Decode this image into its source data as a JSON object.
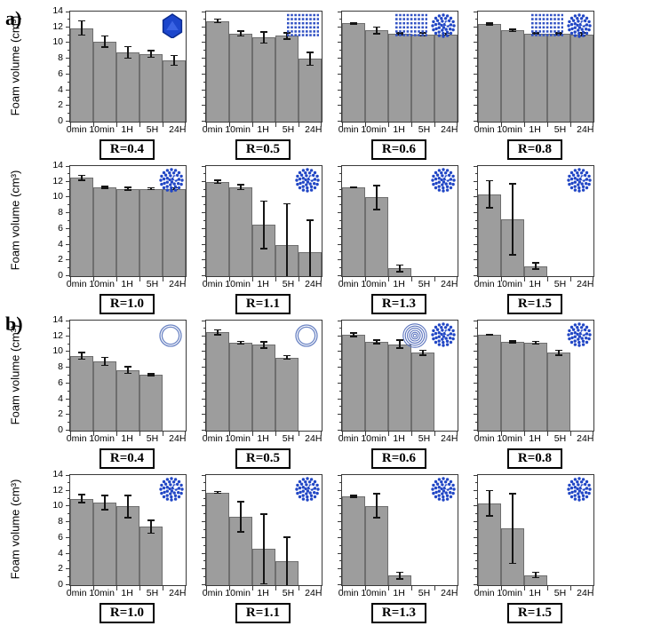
{
  "panels": {
    "a": "a)",
    "b": "b)"
  },
  "axis": {
    "ylabel": "Foam volume (cm³)",
    "yticks": [
      "0",
      "2",
      "4",
      "6",
      "8",
      "10",
      "12",
      "14"
    ],
    "ytick_values": [
      0,
      2,
      4,
      6,
      8,
      10,
      12,
      14
    ],
    "ytick_minor": [
      1,
      3,
      5,
      7,
      9,
      11,
      13
    ],
    "ylim": [
      0,
      14
    ],
    "categories": [
      "0min",
      "10min",
      "1H",
      "5H",
      "24H"
    ]
  },
  "colors": {
    "bar": "#9d9d9d",
    "bar_border": "#6e6e6e",
    "axis": "#3a3a3a",
    "error": "#151515",
    "icon_blue": "#2247c5",
    "icon_blue_dark": "#0b2b8f",
    "icon_blue_light": "#3f68e8",
    "ring_blue": "#6b84c4"
  },
  "chart_data": [
    {
      "type": "bar",
      "panel": "a",
      "label": "R=0.4",
      "categories": [
        "0min",
        "10min",
        "1H",
        "5H",
        "24H"
      ],
      "values": [
        11.9,
        10.2,
        8.8,
        8.6,
        7.8
      ],
      "errors": [
        1.0,
        0.8,
        0.8,
        0.5,
        0.7
      ],
      "icons": [
        "cubic"
      ],
      "ylim": [
        0,
        14
      ]
    },
    {
      "type": "bar",
      "panel": "a",
      "label": "R=0.5",
      "categories": [
        "0min",
        "10min",
        "1H",
        "5H",
        "24H"
      ],
      "values": [
        12.8,
        11.2,
        10.7,
        10.9,
        8.0
      ],
      "errors": [
        0.3,
        0.4,
        0.8,
        0.5,
        0.9
      ],
      "icons": [
        "lamellar"
      ],
      "ylim": [
        0,
        14
      ]
    },
    {
      "type": "bar",
      "panel": "a",
      "label": "R=0.6",
      "categories": [
        "0min",
        "10min",
        "1H",
        "5H",
        "24H"
      ],
      "values": [
        12.5,
        11.6,
        11.2,
        11.1,
        11.1
      ],
      "errors": [
        0.15,
        0.5,
        0.2,
        0.3,
        0.2
      ],
      "icons": [
        "lamellar",
        "micelle"
      ],
      "ylim": [
        0,
        14
      ]
    },
    {
      "type": "bar",
      "panel": "a",
      "label": "R=0.8",
      "categories": [
        "0min",
        "10min",
        "1H",
        "5H",
        "24H"
      ],
      "values": [
        12.4,
        11.6,
        11.2,
        11.2,
        11.1
      ],
      "errors": [
        0.2,
        0.25,
        0.15,
        0.2,
        0.3
      ],
      "icons": [
        "lamellar",
        "micelle"
      ],
      "ylim": [
        0,
        14
      ]
    },
    {
      "type": "bar",
      "panel": "a",
      "label": "R=1.0",
      "categories": [
        "0min",
        "10min",
        "1H",
        "5H",
        "24H"
      ],
      "values": [
        12.5,
        11.3,
        11.1,
        11.1,
        11.1
      ],
      "errors": [
        0.4,
        0.2,
        0.25,
        0.2,
        0.2
      ],
      "icons": [
        "micelle"
      ],
      "ylim": [
        0,
        14
      ]
    },
    {
      "type": "bar",
      "panel": "a",
      "label": "R=1.1",
      "categories": [
        "0min",
        "10min",
        "1H",
        "5H",
        "24H"
      ],
      "values": [
        12.0,
        11.3,
        6.5,
        3.9,
        3.0
      ],
      "errors": [
        0.3,
        0.4,
        3.1,
        5.4,
        4.2
      ],
      "icons": [
        "micelle"
      ],
      "ylim": [
        0,
        14
      ]
    },
    {
      "type": "bar",
      "panel": "a",
      "label": "R=1.3",
      "categories": [
        "0min",
        "10min",
        "1H",
        "5H",
        "24H"
      ],
      "values": [
        11.3,
        10.0,
        1.0,
        0,
        0
      ],
      "errors": [
        0.15,
        1.6,
        0.5,
        0,
        0
      ],
      "icons": [
        "micelle"
      ],
      "ylim": [
        0,
        14
      ]
    },
    {
      "type": "bar",
      "panel": "a",
      "label": "R=1.5",
      "categories": [
        "0min",
        "10min",
        "1H",
        "5H",
        "24H"
      ],
      "values": [
        10.4,
        7.2,
        1.3,
        0,
        0
      ],
      "errors": [
        1.8,
        4.6,
        0.5,
        0,
        0
      ],
      "icons": [
        "micelle"
      ],
      "ylim": [
        0,
        14
      ]
    },
    {
      "type": "bar",
      "panel": "b",
      "label": "R=0.4",
      "categories": [
        "0min",
        "10min",
        "1H",
        "5H",
        "24H"
      ],
      "values": [
        9.5,
        8.8,
        7.7,
        7.1,
        0
      ],
      "errors": [
        0.5,
        0.6,
        0.5,
        0.2,
        0
      ],
      "icons": [
        "vesicle"
      ],
      "ylim": [
        0,
        14
      ]
    },
    {
      "type": "bar",
      "panel": "b",
      "label": "R=0.5",
      "categories": [
        "0min",
        "10min",
        "1H",
        "5H",
        "24H"
      ],
      "values": [
        12.5,
        11.2,
        10.9,
        9.3,
        0
      ],
      "errors": [
        0.4,
        0.25,
        0.5,
        0.3,
        0
      ],
      "icons": [
        "vesicle"
      ],
      "ylim": [
        0,
        14
      ]
    },
    {
      "type": "bar",
      "panel": "b",
      "label": "R=0.6",
      "categories": [
        "0min",
        "10min",
        "1H",
        "5H",
        "24H"
      ],
      "values": [
        12.2,
        11.3,
        11.0,
        9.9,
        0
      ],
      "errors": [
        0.3,
        0.3,
        0.6,
        0.4,
        0
      ],
      "icons": [
        "multilamellar",
        "micelle"
      ],
      "ylim": [
        0,
        14
      ]
    },
    {
      "type": "bar",
      "panel": "b",
      "label": "R=0.8",
      "categories": [
        "0min",
        "10min",
        "1H",
        "5H",
        "24H"
      ],
      "values": [
        12.2,
        11.3,
        11.2,
        9.9,
        0
      ],
      "errors": [
        0.15,
        0.2,
        0.25,
        0.4,
        0
      ],
      "icons": [
        "micelle"
      ],
      "ylim": [
        0,
        14
      ]
    },
    {
      "type": "bar",
      "panel": "b",
      "label": "R=1.0",
      "categories": [
        "0min",
        "10min",
        "1H",
        "5H",
        "24H"
      ],
      "values": [
        11.0,
        10.5,
        10.0,
        7.4,
        0
      ],
      "errors": [
        0.6,
        1.0,
        1.5,
        0.9,
        0
      ],
      "icons": [
        "micelle"
      ],
      "ylim": [
        0,
        14
      ]
    },
    {
      "type": "bar",
      "panel": "b",
      "label": "R=1.1",
      "categories": [
        "0min",
        "10min",
        "1H",
        "5H",
        "24H"
      ],
      "values": [
        11.8,
        8.7,
        4.6,
        3.0,
        0
      ],
      "errors": [
        0.2,
        2.0,
        4.5,
        3.2,
        0
      ],
      "icons": [
        "micelle"
      ],
      "ylim": [
        0,
        14
      ]
    },
    {
      "type": "bar",
      "panel": "b",
      "label": "R=1.3",
      "categories": [
        "0min",
        "10min",
        "1H",
        "5H",
        "24H"
      ],
      "values": [
        11.3,
        10.1,
        1.2,
        0,
        0
      ],
      "errors": [
        0.2,
        1.6,
        0.5,
        0,
        0
      ],
      "icons": [
        "micelle"
      ],
      "ylim": [
        0,
        14
      ]
    },
    {
      "type": "bar",
      "panel": "b",
      "label": "R=1.5",
      "categories": [
        "0min",
        "10min",
        "1H",
        "5H",
        "24H"
      ],
      "values": [
        10.4,
        7.2,
        1.3,
        0,
        0
      ],
      "errors": [
        1.7,
        4.5,
        0.4,
        0,
        0
      ],
      "icons": [
        "micelle"
      ],
      "ylim": [
        0,
        14
      ]
    }
  ]
}
